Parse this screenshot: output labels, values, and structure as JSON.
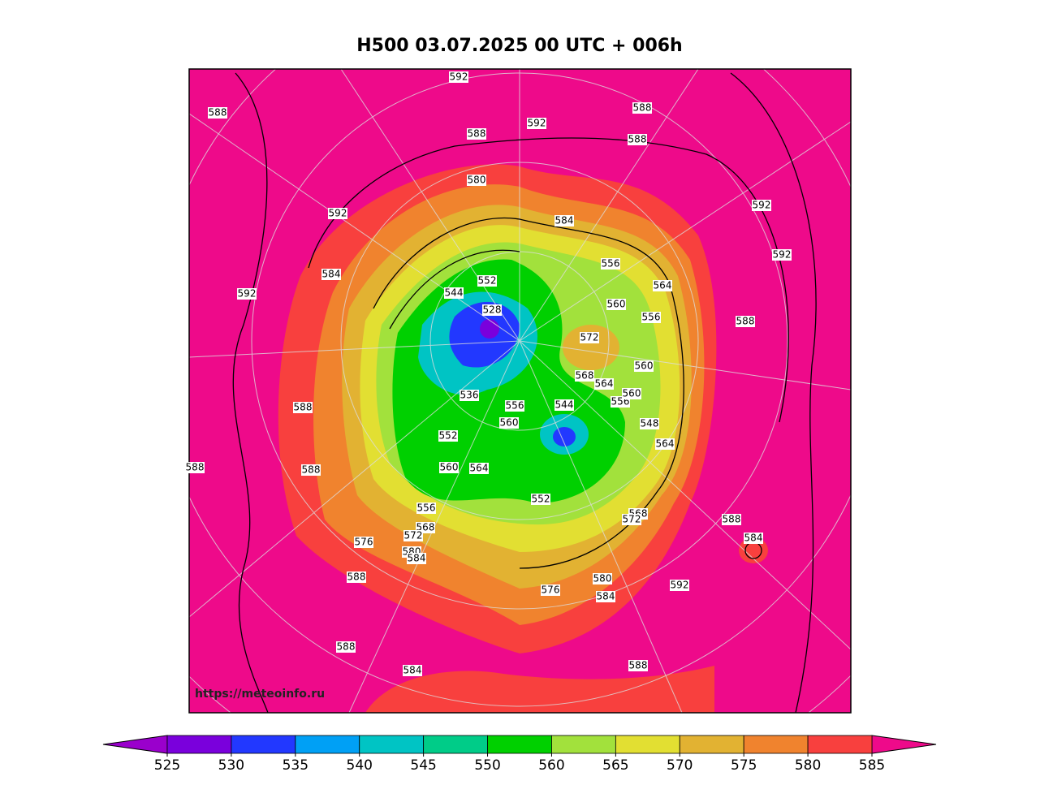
{
  "title": "H500  03.07.2025 00 UTC + 006h",
  "watermark": "https://meteoinfo.ru",
  "map": {
    "contour_labels": [
      592,
      588,
      588,
      592,
      588,
      588,
      580,
      584,
      592,
      592,
      592,
      584,
      592,
      556,
      564,
      544,
      552,
      528,
      556,
      588,
      560,
      572,
      560,
      568,
      564,
      536,
      556,
      544,
      556,
      560,
      560,
      552,
      548,
      564,
      588,
      588,
      560,
      564,
      556,
      552,
      568,
      572,
      588,
      584,
      568,
      572,
      576,
      580,
      584,
      588,
      580,
      584,
      576,
      592,
      588,
      588,
      584,
      588
    ]
  },
  "colorbar": {
    "ticks": [
      525,
      530,
      535,
      540,
      545,
      550,
      560,
      565,
      570,
      575,
      580,
      585
    ],
    "colors": [
      "#7a00dc",
      "#2238ff",
      "#00a0f5",
      "#00c4c4",
      "#00cc88",
      "#00d000",
      "#a2e13c",
      "#e2df32",
      "#e2b232",
      "#f0832e",
      "#f8403e"
    ],
    "under_color": "#9a00cc",
    "over_color": "#ee0a8a"
  }
}
